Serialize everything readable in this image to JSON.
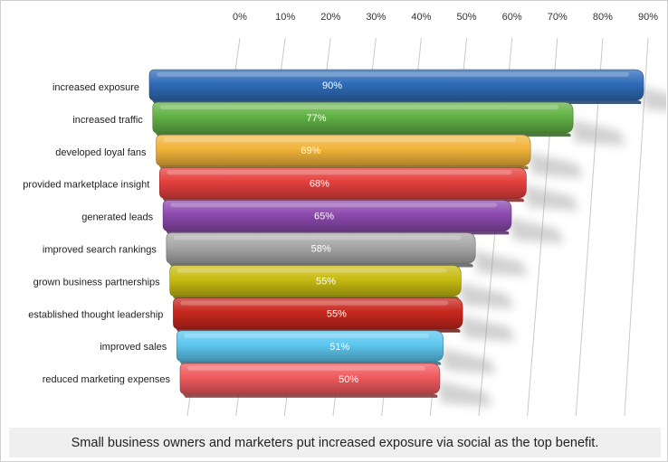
{
  "caption": "Small business owners and marketers put increased exposure via social as the top benefit.",
  "chart_data": {
    "type": "bar",
    "orientation": "horizontal",
    "title": "",
    "xlabel": "",
    "ylabel": "",
    "xlim": [
      0,
      90
    ],
    "x_tick_labels": [
      "0%",
      "10%",
      "20%",
      "30%",
      "40%",
      "50%",
      "60%",
      "70%",
      "80%",
      "90%"
    ],
    "grid": true,
    "legend": "none",
    "categories": [
      "increased exposure",
      "increased traffic",
      "developed loyal fans",
      "provided marketplace insight",
      "generated leads",
      "improved search rankings",
      "grown business partnerships",
      "established thought leadership",
      "improved sales",
      "reduced marketing expenses"
    ],
    "values": [
      90,
      77,
      69,
      68,
      65,
      58,
      55,
      55,
      51,
      50
    ],
    "value_labels": [
      "90%",
      "77%",
      "69%",
      "68%",
      "65%",
      "58%",
      "55%",
      "55%",
      "51%",
      "50%"
    ],
    "bar_colors": [
      "#2f6cb8",
      "#62b245",
      "#f2b43a",
      "#e5403d",
      "#8d4aaf",
      "#a7a7a7",
      "#c7bb12",
      "#c7271d",
      "#5cc7ef",
      "#ef5a5e"
    ]
  }
}
